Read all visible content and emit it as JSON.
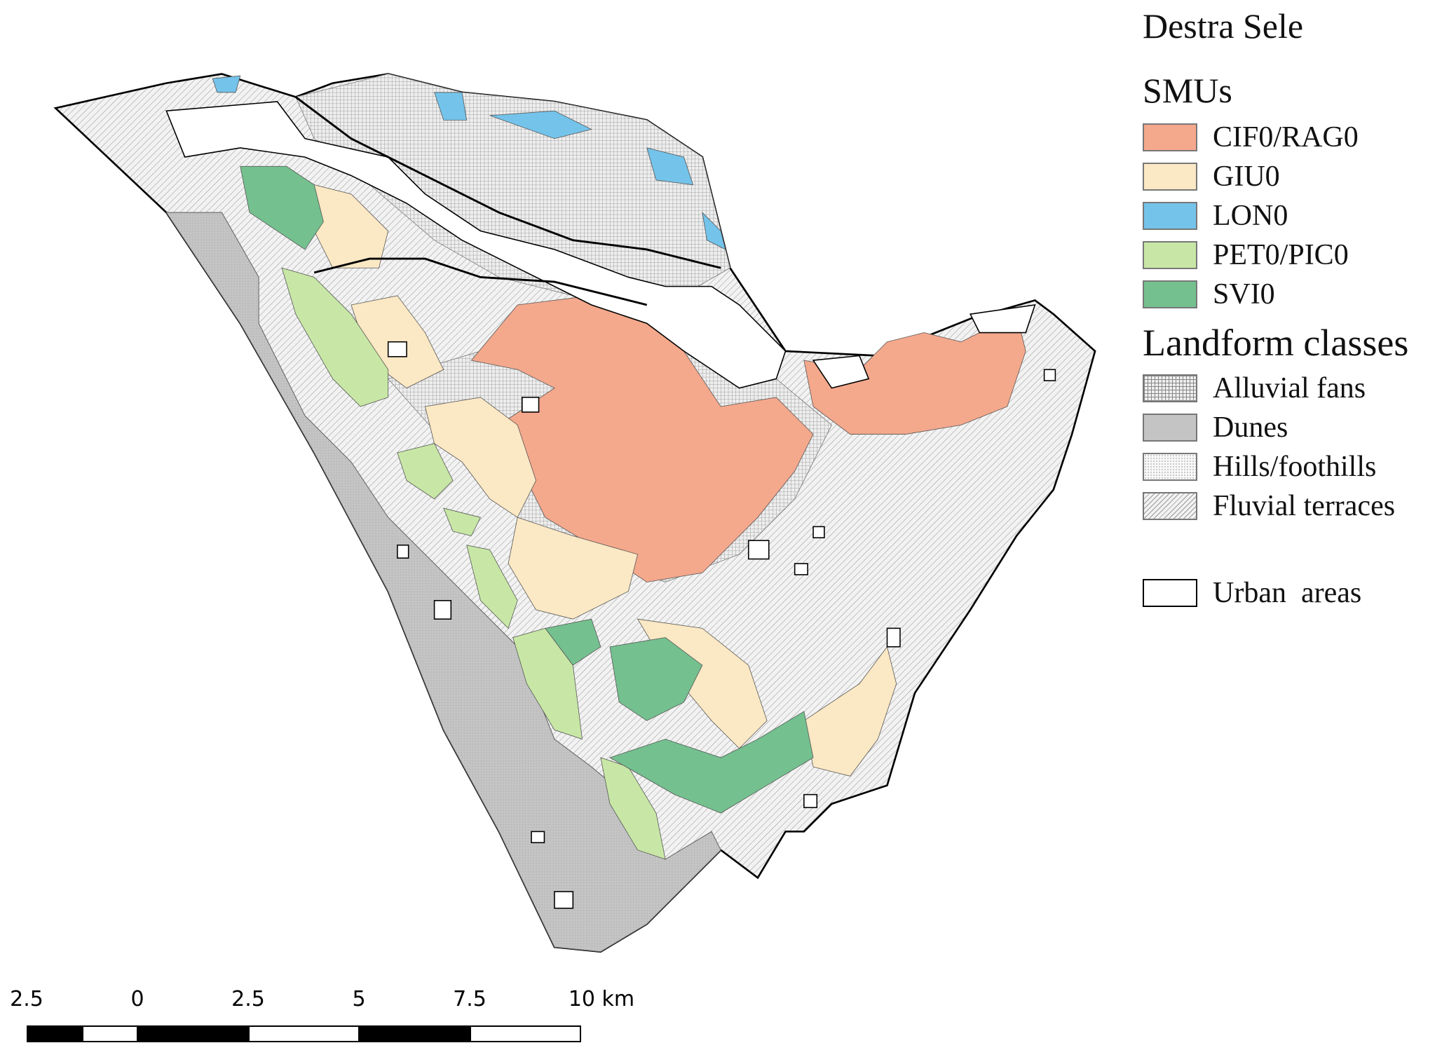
{
  "title": "Destra Sele",
  "smu_heading": "SMUs",
  "smus": [
    {
      "label": "CIF0/RAG0",
      "color": "#f4a88c"
    },
    {
      "label": "GIU0",
      "color": "#fbe8c4"
    },
    {
      "label": "LON0",
      "color": "#74c3ea"
    },
    {
      "label": "PET0/PIC0",
      "color": "#c8e7a6"
    },
    {
      "label": "SVI0",
      "color": "#74c08f"
    }
  ],
  "landform_heading": "Landform classes",
  "landforms": [
    {
      "label": "Alluvial fans",
      "pattern": "grid"
    },
    {
      "label": "Dunes",
      "pattern": "gray-fill"
    },
    {
      "label": "Hills/foothills",
      "pattern": "dots"
    },
    {
      "label": "Fluvial terraces",
      "pattern": "diagonal-hatch"
    }
  ],
  "urban_label": "Urban  areas",
  "scale_bar": {
    "labels": [
      "2.5",
      "0",
      "2.5",
      "5",
      "7.5",
      "10 km"
    ]
  }
}
